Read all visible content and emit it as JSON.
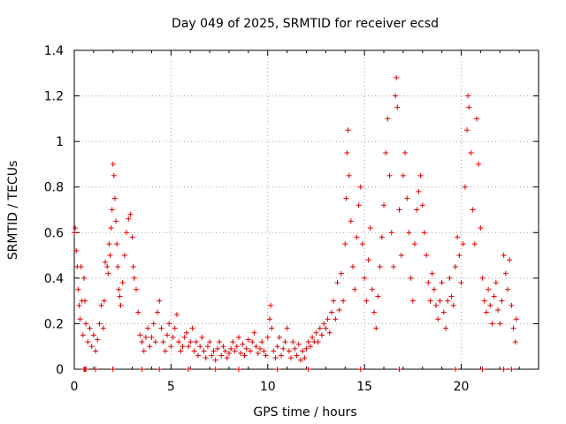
{
  "chart_data": {
    "type": "scatter",
    "title": "Day 049 of 2025, SRMTID for receiver ecsd",
    "xlabel": "GPS time / hours",
    "ylabel": "SRMTID / TECUs",
    "xlim": [
      0,
      24
    ],
    "ylim": [
      0,
      1.4
    ],
    "xticks": [
      0,
      5,
      10,
      15,
      20
    ],
    "xtick_labels": [
      "0",
      "5",
      "10",
      "15",
      "20"
    ],
    "yticks": [
      0,
      0.2,
      0.4,
      0.6,
      0.8,
      1.0,
      1.2,
      1.4
    ],
    "ytick_labels": [
      "0",
      "0.2",
      "0.4",
      "0.6",
      "0.8",
      "1",
      "1.2",
      "1.4"
    ],
    "grid": true,
    "marker": "+",
    "color": "#e00000",
    "series": [
      {
        "name": "SRMTID",
        "points": [
          [
            0.0,
            0.6
          ],
          [
            0.05,
            0.62
          ],
          [
            0.1,
            0.52
          ],
          [
            0.15,
            0.45
          ],
          [
            0.2,
            0.35
          ],
          [
            0.25,
            0.28
          ],
          [
            0.3,
            0.22
          ],
          [
            0.35,
            0.45
          ],
          [
            0.4,
            0.3
          ],
          [
            0.45,
            0.15
          ],
          [
            0.5,
            0.4
          ],
          [
            0.55,
            0.3
          ],
          [
            0.6,
            0.2
          ],
          [
            0.7,
            0.12
          ],
          [
            0.8,
            0.18
          ],
          [
            0.9,
            0.1
          ],
          [
            1.0,
            0.15
          ],
          [
            1.1,
            0.08
          ],
          [
            1.2,
            0.13
          ],
          [
            1.3,
            0.2
          ],
          [
            1.4,
            0.28
          ],
          [
            1.5,
            0.18
          ],
          [
            1.55,
            0.3
          ],
          [
            1.6,
            0.47
          ],
          [
            1.7,
            0.45
          ],
          [
            1.75,
            0.42
          ],
          [
            1.8,
            0.55
          ],
          [
            1.85,
            0.5
          ],
          [
            1.9,
            0.62
          ],
          [
            1.95,
            0.7
          ],
          [
            2.0,
            0.9
          ],
          [
            2.05,
            0.85
          ],
          [
            2.1,
            0.75
          ],
          [
            2.15,
            0.65
          ],
          [
            2.2,
            0.55
          ],
          [
            2.25,
            0.45
          ],
          [
            2.3,
            0.35
          ],
          [
            2.35,
            0.32
          ],
          [
            2.4,
            0.28
          ],
          [
            2.5,
            0.38
          ],
          [
            2.6,
            0.5
          ],
          [
            2.7,
            0.6
          ],
          [
            2.8,
            0.66
          ],
          [
            2.9,
            0.68
          ],
          [
            3.0,
            0.58
          ],
          [
            3.05,
            0.45
          ],
          [
            3.1,
            0.4
          ],
          [
            3.2,
            0.35
          ],
          [
            3.3,
            0.25
          ],
          [
            3.4,
            0.15
          ],
          [
            3.5,
            0.12
          ],
          [
            3.6,
            0.08
          ],
          [
            3.7,
            0.14
          ],
          [
            3.8,
            0.18
          ],
          [
            3.9,
            0.1
          ],
          [
            4.0,
            0.14
          ],
          [
            4.1,
            0.2
          ],
          [
            4.2,
            0.12
          ],
          [
            4.3,
            0.25
          ],
          [
            4.4,
            0.3
          ],
          [
            4.5,
            0.18
          ],
          [
            4.6,
            0.12
          ],
          [
            4.7,
            0.08
          ],
          [
            4.8,
            0.15
          ],
          [
            4.9,
            0.2
          ],
          [
            5.0,
            0.1
          ],
          [
            5.1,
            0.14
          ],
          [
            5.2,
            0.18
          ],
          [
            5.3,
            0.24
          ],
          [
            5.4,
            0.12
          ],
          [
            5.5,
            0.08
          ],
          [
            5.6,
            0.1
          ],
          [
            5.7,
            0.14
          ],
          [
            5.8,
            0.16
          ],
          [
            5.9,
            0.1
          ],
          [
            6.0,
            0.12
          ],
          [
            6.1,
            0.18
          ],
          [
            6.2,
            0.08
          ],
          [
            6.3,
            0.12
          ],
          [
            6.4,
            0.06
          ],
          [
            6.5,
            0.1
          ],
          [
            6.6,
            0.14
          ],
          [
            6.7,
            0.08
          ],
          [
            6.8,
            0.05
          ],
          [
            6.9,
            0.1
          ],
          [
            7.0,
            0.12
          ],
          [
            7.1,
            0.06
          ],
          [
            7.2,
            0.08
          ],
          [
            7.3,
            0.04
          ],
          [
            7.4,
            0.09
          ],
          [
            7.5,
            0.12
          ],
          [
            7.6,
            0.06
          ],
          [
            7.7,
            0.1
          ],
          [
            7.8,
            0.08
          ],
          [
            7.9,
            0.05
          ],
          [
            8.0,
            0.07
          ],
          [
            8.1,
            0.09
          ],
          [
            8.2,
            0.12
          ],
          [
            8.3,
            0.08
          ],
          [
            8.4,
            0.1
          ],
          [
            8.5,
            0.14
          ],
          [
            8.6,
            0.07
          ],
          [
            8.7,
            0.11
          ],
          [
            8.8,
            0.06
          ],
          [
            8.9,
            0.09
          ],
          [
            9.0,
            0.13
          ],
          [
            9.1,
            0.08
          ],
          [
            9.2,
            0.12
          ],
          [
            9.3,
            0.16
          ],
          [
            9.4,
            0.1
          ],
          [
            9.5,
            0.07
          ],
          [
            9.6,
            0.09
          ],
          [
            9.7,
            0.12
          ],
          [
            9.8,
            0.08
          ],
          [
            9.9,
            0.06
          ],
          [
            10.0,
            0.14
          ],
          [
            10.1,
            0.22
          ],
          [
            10.15,
            0.28
          ],
          [
            10.2,
            0.18
          ],
          [
            10.3,
            0.08
          ],
          [
            10.4,
            0.05
          ],
          [
            10.5,
            0.1
          ],
          [
            10.6,
            0.14
          ],
          [
            10.7,
            0.06
          ],
          [
            10.8,
            0.09
          ],
          [
            10.9,
            0.12
          ],
          [
            11.0,
            0.18
          ],
          [
            11.1,
            0.08
          ],
          [
            11.2,
            0.05
          ],
          [
            11.3,
            0.12
          ],
          [
            11.4,
            0.09
          ],
          [
            11.5,
            0.06
          ],
          [
            11.6,
            0.11
          ],
          [
            11.7,
            0.04
          ],
          [
            11.8,
            0.08
          ],
          [
            11.9,
            0.05
          ],
          [
            12.0,
            0.09
          ],
          [
            12.1,
            0.12
          ],
          [
            12.2,
            0.1
          ],
          [
            12.3,
            0.14
          ],
          [
            12.4,
            0.12
          ],
          [
            12.5,
            0.16
          ],
          [
            12.6,
            0.12
          ],
          [
            12.7,
            0.18
          ],
          [
            12.8,
            0.15
          ],
          [
            12.9,
            0.2
          ],
          [
            13.0,
            0.18
          ],
          [
            13.1,
            0.22
          ],
          [
            13.2,
            0.16
          ],
          [
            13.3,
            0.25
          ],
          [
            13.4,
            0.3
          ],
          [
            13.5,
            0.22
          ],
          [
            13.6,
            0.38
          ],
          [
            13.7,
            0.26
          ],
          [
            13.8,
            0.42
          ],
          [
            13.9,
            0.3
          ],
          [
            14.0,
            0.55
          ],
          [
            14.05,
            0.75
          ],
          [
            14.1,
            0.95
          ],
          [
            14.15,
            1.05
          ],
          [
            14.2,
            0.85
          ],
          [
            14.3,
            0.65
          ],
          [
            14.4,
            0.45
          ],
          [
            14.5,
            0.35
          ],
          [
            14.6,
            0.58
          ],
          [
            14.7,
            0.72
          ],
          [
            14.8,
            0.8
          ],
          [
            14.9,
            0.55
          ],
          [
            15.0,
            0.4
          ],
          [
            15.1,
            0.3
          ],
          [
            15.2,
            0.48
          ],
          [
            15.3,
            0.62
          ],
          [
            15.4,
            0.35
          ],
          [
            15.5,
            0.25
          ],
          [
            15.6,
            0.18
          ],
          [
            15.7,
            0.32
          ],
          [
            15.8,
            0.45
          ],
          [
            15.9,
            0.58
          ],
          [
            16.0,
            0.72
          ],
          [
            16.1,
            0.95
          ],
          [
            16.2,
            1.1
          ],
          [
            16.3,
            0.85
          ],
          [
            16.4,
            0.6
          ],
          [
            16.5,
            0.45
          ],
          [
            16.6,
            1.2
          ],
          [
            16.65,
            1.28
          ],
          [
            16.7,
            1.15
          ],
          [
            16.8,
            0.7
          ],
          [
            16.9,
            0.5
          ],
          [
            17.0,
            0.85
          ],
          [
            17.1,
            0.95
          ],
          [
            17.2,
            0.75
          ],
          [
            17.3,
            0.6
          ],
          [
            17.4,
            0.4
          ],
          [
            17.5,
            0.3
          ],
          [
            17.6,
            0.55
          ],
          [
            17.7,
            0.7
          ],
          [
            17.8,
            0.78
          ],
          [
            17.9,
            0.85
          ],
          [
            18.0,
            0.72
          ],
          [
            18.1,
            0.6
          ],
          [
            18.2,
            0.5
          ],
          [
            18.3,
            0.38
          ],
          [
            18.4,
            0.3
          ],
          [
            18.5,
            0.42
          ],
          [
            18.6,
            0.35
          ],
          [
            18.7,
            0.28
          ],
          [
            18.8,
            0.22
          ],
          [
            18.9,
            0.3
          ],
          [
            19.0,
            0.38
          ],
          [
            19.1,
            0.25
          ],
          [
            19.2,
            0.18
          ],
          [
            19.3,
            0.3
          ],
          [
            19.4,
            0.4
          ],
          [
            19.5,
            0.32
          ],
          [
            19.6,
            0.28
          ],
          [
            19.7,
            0.45
          ],
          [
            19.8,
            0.58
          ],
          [
            19.9,
            0.5
          ],
          [
            20.0,
            0.38
          ],
          [
            20.1,
            0.55
          ],
          [
            20.2,
            0.8
          ],
          [
            20.3,
            1.05
          ],
          [
            20.35,
            1.2
          ],
          [
            20.4,
            1.15
          ],
          [
            20.5,
            0.95
          ],
          [
            20.6,
            0.7
          ],
          [
            20.7,
            0.55
          ],
          [
            20.8,
            1.1
          ],
          [
            20.9,
            0.9
          ],
          [
            21.0,
            0.62
          ],
          [
            21.1,
            0.4
          ],
          [
            21.2,
            0.3
          ],
          [
            21.3,
            0.25
          ],
          [
            21.4,
            0.35
          ],
          [
            21.5,
            0.28
          ],
          [
            21.6,
            0.2
          ],
          [
            21.7,
            0.32
          ],
          [
            21.8,
            0.38
          ],
          [
            21.9,
            0.26
          ],
          [
            22.0,
            0.2
          ],
          [
            22.1,
            0.3
          ],
          [
            22.2,
            0.5
          ],
          [
            22.3,
            0.42
          ],
          [
            22.4,
            0.35
          ],
          [
            22.5,
            0.48
          ],
          [
            22.6,
            0.28
          ],
          [
            22.7,
            0.18
          ],
          [
            22.8,
            0.12
          ],
          [
            22.85,
            0.22
          ]
        ]
      }
    ],
    "zero_points_x": [
      0.5,
      0.55,
      0.6,
      1.1,
      2.0,
      3.5,
      4.4,
      5.9,
      7.3,
      8.5,
      10.5,
      12.1,
      14.8,
      16.8,
      19.7,
      21.1,
      22.2,
      22.6
    ]
  }
}
